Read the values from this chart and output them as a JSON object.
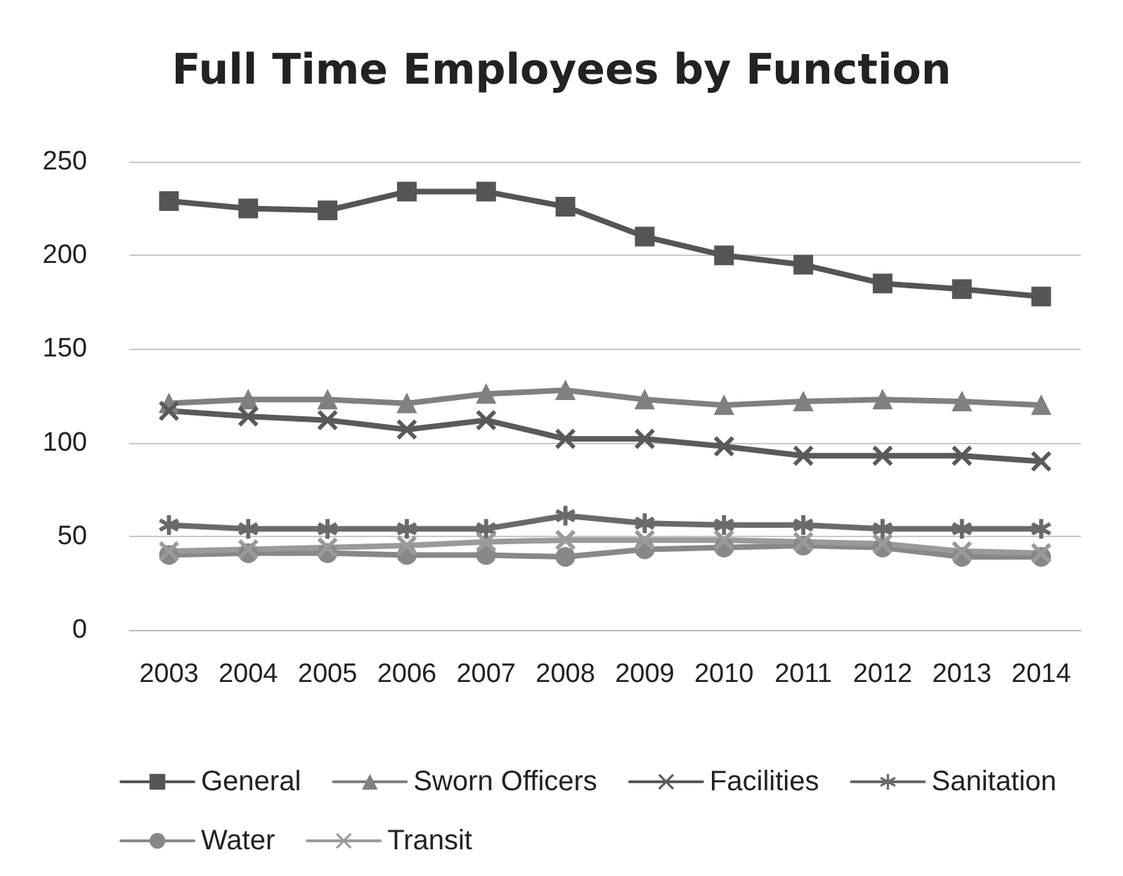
{
  "chart_data": {
    "type": "line",
    "title": "Full Time Employees by Function",
    "categories": [
      "2003",
      "2004",
      "2005",
      "2006",
      "2007",
      "2008",
      "2009",
      "2010",
      "2011",
      "2012",
      "2013",
      "2014"
    ],
    "series": [
      {
        "name": "General",
        "color": "#555555",
        "marker": "square",
        "values": [
          229,
          225,
          224,
          234,
          234,
          226,
          210,
          200,
          195,
          185,
          182,
          178
        ]
      },
      {
        "name": "Sworn Officers",
        "color": "#808080",
        "marker": "triangle",
        "values": [
          121,
          123,
          123,
          121,
          126,
          128,
          123,
          120,
          122,
          123,
          122,
          120
        ]
      },
      {
        "name": "Facilities",
        "color": "#5a5a5a",
        "marker": "cross",
        "values": [
          117,
          114,
          112,
          107,
          112,
          102,
          102,
          98,
          93,
          93,
          93,
          90
        ]
      },
      {
        "name": "Sanitation",
        "color": "#6a6a6a",
        "marker": "star",
        "values": [
          56,
          54,
          54,
          54,
          54,
          61,
          57,
          56,
          56,
          54,
          54,
          54
        ]
      },
      {
        "name": "Water",
        "color": "#888888",
        "marker": "circle",
        "values": [
          40,
          41,
          41,
          40,
          40,
          39,
          43,
          44,
          45,
          44,
          39,
          39
        ]
      },
      {
        "name": "Transit",
        "color": "#9a9a9a",
        "marker": "cross",
        "values": [
          42,
          43,
          44,
          45,
          47,
          48,
          48,
          48,
          47,
          46,
          42,
          41
        ]
      }
    ],
    "ylim": [
      0,
      250
    ],
    "yticks": [
      0,
      50,
      100,
      150,
      200,
      250
    ],
    "grid": "y",
    "legend": "bottom",
    "line_style": "solid"
  }
}
